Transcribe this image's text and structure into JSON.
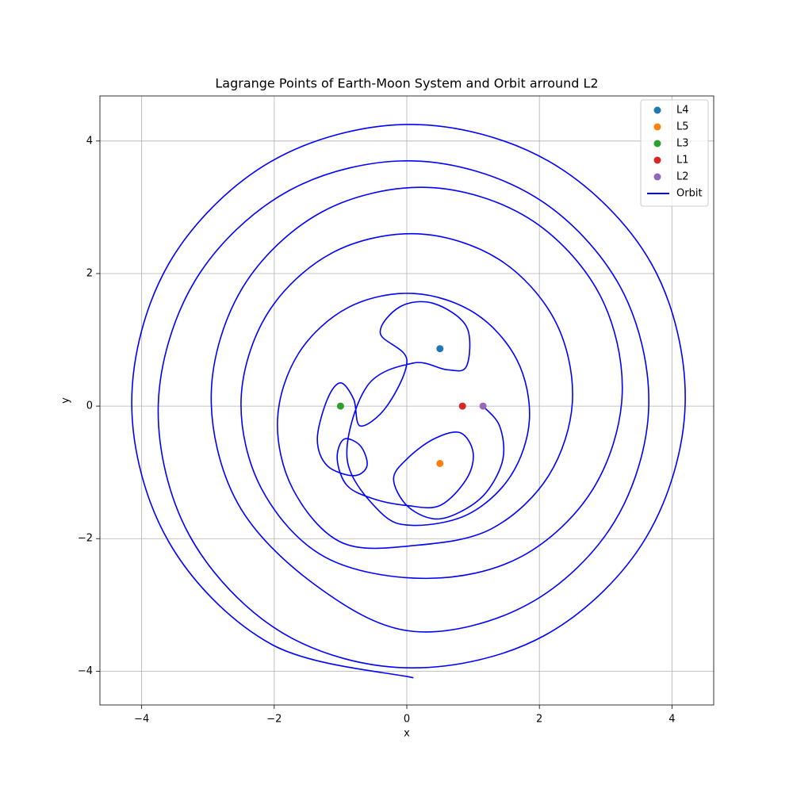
{
  "chart_data": {
    "type": "scatter",
    "title": "Lagrange Points of Earth-Moon System and Orbit arround L2",
    "x_label": "x",
    "y_label": "y",
    "xlim": [
      -4.63,
      4.63
    ],
    "ylim": [
      -4.51,
      4.68
    ],
    "xticks": [
      {
        "value": -4,
        "label": "−4"
      },
      {
        "value": -2,
        "label": "−2"
      },
      0,
      2,
      4
    ],
    "yticks": [
      {
        "value": -4,
        "label": "−4"
      },
      {
        "value": -2,
        "label": "−2"
      },
      0,
      2,
      4
    ],
    "grid": true,
    "legend": "upper right",
    "series": [
      {
        "name": "L4",
        "type": "scatter",
        "color": "#1f77b4",
        "x": [
          0.5
        ],
        "values": [
          0.866
        ]
      },
      {
        "name": "L5",
        "type": "scatter",
        "color": "#ff7f0e",
        "x": [
          0.5
        ],
        "values": [
          -0.866
        ]
      },
      {
        "name": "L3",
        "type": "scatter",
        "color": "#2ca02c",
        "x": [
          -1.0
        ],
        "values": [
          0
        ]
      },
      {
        "name": "L1",
        "type": "scatter",
        "color": "#d62728",
        "x": [
          0.84
        ],
        "values": [
          0
        ]
      },
      {
        "name": "L2",
        "type": "scatter",
        "color": "#9467bd",
        "x": [
          1.15
        ],
        "values": [
          0
        ]
      },
      {
        "name": "Orbit",
        "type": "line",
        "color": "#0000ff",
        "x": [
          1.15,
          1.4,
          1.45,
          1.2,
          0.8,
          0.4,
          0.0,
          -0.2,
          0.0,
          0.4,
          0.8,
          1.0,
          0.9,
          0.5,
          0.0,
          -0.5,
          -0.9,
          -1.05,
          -0.95,
          -0.7,
          -0.6,
          -0.8,
          -1.2,
          -1.35,
          -1.2,
          -1.0,
          -0.8,
          -0.7,
          -0.3,
          0.0,
          -0.4,
          -0.1,
          0.4,
          0.9,
          0.9,
          0.6,
          0.1,
          -0.6,
          -0.9,
          -0.4,
          0.1,
          0.93,
          1.57,
          1.85,
          1.66,
          1.03,
          0.1,
          -0.88,
          -1.63,
          -1.95,
          -1.72,
          -0.98,
          0.15,
          1.28,
          2.14,
          2.5,
          2.23,
          1.38,
          0.15,
          -1.13,
          -2.1,
          -2.5,
          -2.19,
          -1.23,
          0.3,
          1.73,
          2.81,
          3.25,
          2.9,
          1.83,
          0.3,
          -1.28,
          -2.47,
          -2.95,
          -2.56,
          -1.38,
          0.1,
          1.83,
          3.13,
          3.65,
          3.22,
          1.93,
          0.1,
          -1.78,
          -3.19,
          -3.75,
          -3.28,
          -1.88,
          0.05,
          2.08,
          3.6,
          4.2,
          3.69,
          2.15,
          0.05,
          -2.05,
          -3.59,
          -4.15,
          -3.59,
          -2.05,
          0.1
        ],
        "values": [
          0,
          -0.3,
          -0.8,
          -1.3,
          -1.6,
          -1.7,
          -1.5,
          -1.1,
          -0.8,
          -0.5,
          -0.4,
          -0.7,
          -1.1,
          -1.5,
          -1.5,
          -1.4,
          -1.2,
          -0.8,
          -0.5,
          -0.6,
          -0.9,
          -1.05,
          -0.9,
          -0.5,
          0.1,
          0.35,
          0.1,
          -0.3,
          0.0,
          0.7,
          1.1,
          1.5,
          1.55,
          1.2,
          0.6,
          0.55,
          0.65,
          0.3,
          -0.8,
          -1.6,
          -1.8,
          -1.63,
          -1.05,
          -0.2,
          0.7,
          1.4,
          1.7,
          1.49,
          0.8,
          -0.2,
          -1.25,
          -2.06,
          -2.1,
          -1.85,
          -1.05,
          0.1,
          1.3,
          2.22,
          2.6,
          2.31,
          1.4,
          0.1,
          -1.25,
          -2.28,
          -2.6,
          -2.27,
          -1.25,
          0.2,
          1.7,
          2.84,
          3.3,
          2.93,
          1.8,
          0.2,
          -1.45,
          -2.7,
          -3.4,
          -2.99,
          -1.75,
          0,
          1.8,
          3.16,
          3.7,
          3.25,
          1.9,
          0,
          -1.95,
          -3.42,
          -3.95,
          -3.46,
          -2.0,
          0.05,
          2.15,
          3.69,
          4.25,
          3.69,
          2.15,
          0.05,
          -2.05,
          -3.59,
          -4.1
        ]
      }
    ]
  }
}
